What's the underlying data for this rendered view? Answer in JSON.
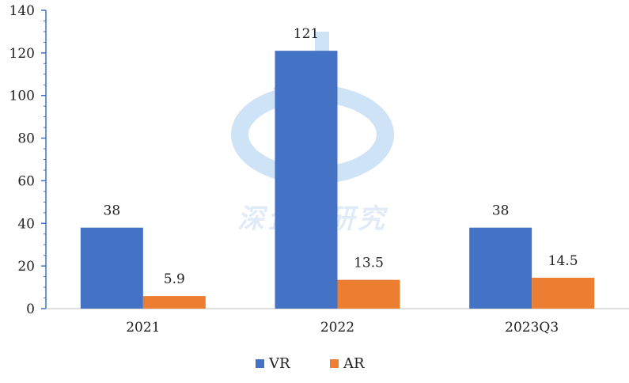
{
  "chart_data": {
    "type": "bar",
    "title": "",
    "xlabel": "",
    "ylabel": "",
    "categories": [
      "2021",
      "2022",
      "2023Q3"
    ],
    "series": [
      {
        "name": "VR",
        "values": [
          38,
          121,
          38
        ],
        "labels": [
          "38",
          "121",
          "38"
        ],
        "color": "#4472c4"
      },
      {
        "name": "AR",
        "values": [
          5.9,
          13.5,
          14.5
        ],
        "labels": [
          "5.9",
          "13.5",
          "14.5"
        ],
        "color": "#ed7d31"
      }
    ],
    "ylim": [
      0,
      140
    ],
    "yticks": [
      "0",
      "20",
      "40",
      "60",
      "80",
      "100",
      "120",
      "140"
    ],
    "grid": false,
    "legend_position": "bottom",
    "axis_color": "#4472c4"
  },
  "watermark": {
    "text": "深企投研究"
  }
}
